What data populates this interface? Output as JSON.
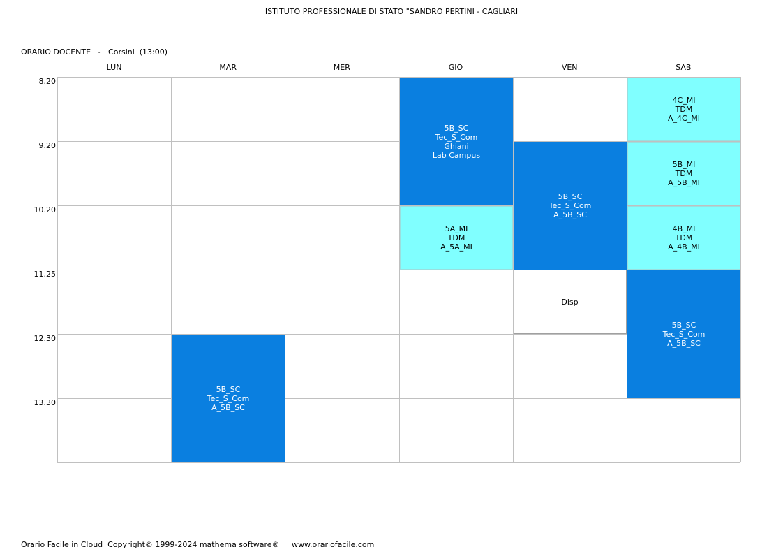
{
  "header": {
    "school": "ISTITUTO PROFESSIONALE DI STATO \"SANDRO PERTINI - CAGLIARI",
    "teacher_line": "ORARIO DOCENTE   -   Corsini  (13:00)"
  },
  "days": [
    "LUN",
    "MAR",
    "MER",
    "GIO",
    "VEN",
    "SAB"
  ],
  "times": [
    "8.20",
    "9.20",
    "10.20",
    "11.25",
    "12.30",
    "13.30"
  ],
  "lessons": [
    {
      "day": "GIO",
      "slot_start": 1,
      "slots": 2,
      "style": "dark",
      "lines": [
        "5B_SC",
        "Tec_S_Com",
        "Ghiani",
        "Lab Campus"
      ]
    },
    {
      "day": "GIO",
      "slot_start": 3,
      "slots": 1,
      "style": "light",
      "lines": [
        "5A_MI",
        "TDM",
        "A_5A_MI"
      ]
    },
    {
      "day": "VEN",
      "slot_start": 2,
      "slots": 2,
      "style": "dark",
      "lines": [
        "5B_SC",
        "Tec_S_Com",
        "A_5B_SC"
      ]
    },
    {
      "day": "VEN",
      "slot_start": 4,
      "slots": 1,
      "style": "plain",
      "lines": [
        "Disp"
      ]
    },
    {
      "day": "SAB",
      "slot_start": 1,
      "slots": 1,
      "style": "light",
      "lines": [
        "4C_MI",
        "TDM",
        "A_4C_MI"
      ]
    },
    {
      "day": "SAB",
      "slot_start": 2,
      "slots": 1,
      "style": "light",
      "lines": [
        "5B_MI",
        "TDM",
        "A_5B_MI"
      ]
    },
    {
      "day": "SAB",
      "slot_start": 3,
      "slots": 1,
      "style": "light",
      "lines": [
        "4B_MI",
        "TDM",
        "A_4B_MI"
      ]
    },
    {
      "day": "SAB",
      "slot_start": 4,
      "slots": 2,
      "style": "dark",
      "lines": [
        "5B_SC",
        "Tec_S_Com",
        "A_5B_SC"
      ]
    },
    {
      "day": "MAR",
      "slot_start": 5,
      "slots": 2,
      "style": "dark",
      "lines": [
        "5B_SC",
        "Tec_S_Com",
        "A_5B_SC"
      ]
    }
  ],
  "colors": {
    "dark": "#0a7fe0",
    "light": "#80ffff",
    "grid": "#c0c0c0"
  },
  "footer": "Orario Facile in Cloud  Copyright© 1999-2024 mathema software®     www.orariofacile.com"
}
